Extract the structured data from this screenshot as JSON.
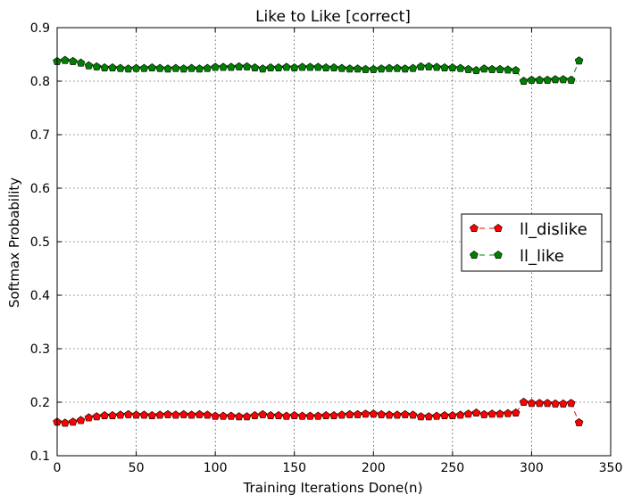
{
  "chart_data": {
    "type": "line",
    "title": "Like to Like [correct]",
    "xlabel": "Training Iterations Done(n)",
    "ylabel": "Softmax Probability",
    "xlim": [
      0,
      350
    ],
    "ylim": [
      0.1,
      0.9
    ],
    "xticks": [
      0,
      50,
      100,
      150,
      200,
      250,
      300,
      350
    ],
    "yticks": [
      0.1,
      0.2,
      0.3,
      0.4,
      0.5,
      0.6,
      0.7,
      0.8,
      0.9
    ],
    "grid": true,
    "legend_position": "center-right",
    "x": [
      0,
      5,
      10,
      15,
      20,
      25,
      30,
      35,
      40,
      45,
      50,
      55,
      60,
      65,
      70,
      75,
      80,
      85,
      90,
      95,
      100,
      105,
      110,
      115,
      120,
      125,
      130,
      135,
      140,
      145,
      150,
      155,
      160,
      165,
      170,
      175,
      180,
      185,
      190,
      195,
      200,
      205,
      210,
      215,
      220,
      225,
      230,
      235,
      240,
      245,
      250,
      255,
      260,
      265,
      270,
      275,
      280,
      285,
      290,
      295,
      300,
      305,
      310,
      315,
      320,
      325,
      330
    ],
    "series": [
      {
        "name": "ll_dislike",
        "color": "#ff0000",
        "values": [
          0.163,
          0.161,
          0.163,
          0.166,
          0.171,
          0.173,
          0.175,
          0.175,
          0.176,
          0.177,
          0.176,
          0.176,
          0.175,
          0.176,
          0.177,
          0.176,
          0.177,
          0.176,
          0.177,
          0.176,
          0.174,
          0.174,
          0.174,
          0.173,
          0.173,
          0.175,
          0.177,
          0.175,
          0.175,
          0.174,
          0.175,
          0.174,
          0.174,
          0.174,
          0.175,
          0.175,
          0.176,
          0.177,
          0.177,
          0.178,
          0.178,
          0.177,
          0.176,
          0.176,
          0.177,
          0.176,
          0.173,
          0.173,
          0.174,
          0.175,
          0.175,
          0.176,
          0.178,
          0.18,
          0.177,
          0.178,
          0.178,
          0.179,
          0.18,
          0.2,
          0.198,
          0.198,
          0.198,
          0.197,
          0.197,
          0.198,
          0.162
        ]
      },
      {
        "name": "ll_like",
        "color": "#008000",
        "values": [
          0.837,
          0.839,
          0.837,
          0.834,
          0.829,
          0.827,
          0.825,
          0.825,
          0.824,
          0.823,
          0.824,
          0.824,
          0.825,
          0.824,
          0.823,
          0.824,
          0.823,
          0.824,
          0.823,
          0.824,
          0.826,
          0.826,
          0.826,
          0.827,
          0.827,
          0.825,
          0.823,
          0.825,
          0.825,
          0.826,
          0.825,
          0.826,
          0.826,
          0.826,
          0.825,
          0.825,
          0.824,
          0.823,
          0.823,
          0.822,
          0.822,
          0.823,
          0.824,
          0.824,
          0.823,
          0.824,
          0.827,
          0.827,
          0.826,
          0.825,
          0.825,
          0.824,
          0.822,
          0.82,
          0.823,
          0.822,
          0.822,
          0.821,
          0.82,
          0.8,
          0.802,
          0.802,
          0.802,
          0.803,
          0.803,
          0.802,
          0.838
        ]
      }
    ]
  }
}
